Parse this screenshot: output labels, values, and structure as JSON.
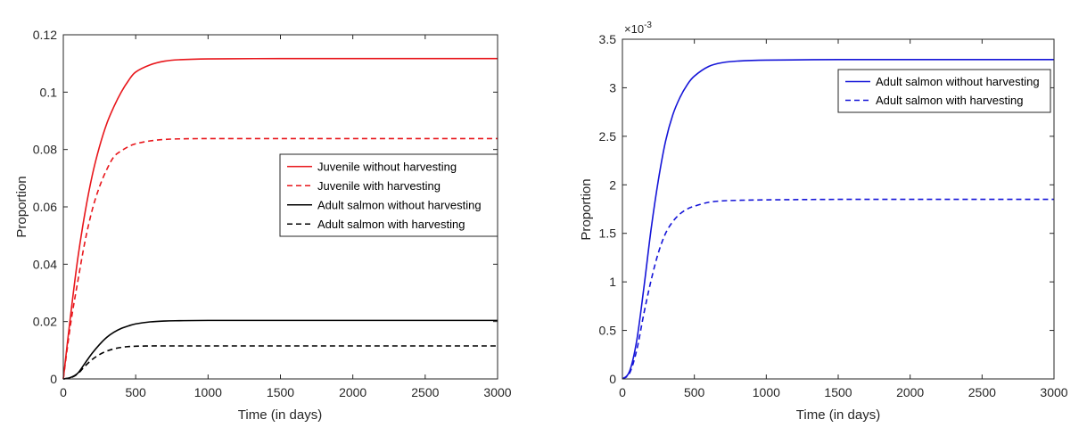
{
  "chart_data": [
    {
      "type": "line",
      "xlabel": "Time (in days)",
      "ylabel": "Proportion",
      "xlim": [
        0,
        3000
      ],
      "ylim": [
        0,
        0.12
      ],
      "xticks": [
        "0",
        "500",
        "1000",
        "1500",
        "2000",
        "2500",
        "3000"
      ],
      "yticks": [
        "0",
        "0.02",
        "0.04",
        "0.06",
        "0.08",
        "0.1",
        "0.12"
      ],
      "grid": false,
      "legend_position": "center-right",
      "series": [
        {
          "name": "Juvenile without harvesting",
          "color": "#e8161b",
          "dash": "solid",
          "x": [
            0,
            50,
            100,
            150,
            200,
            250,
            300,
            350,
            400,
            450,
            500,
            600,
            700,
            800,
            1000,
            1500,
            2000,
            2500,
            3000
          ],
          "y": [
            0,
            0.022,
            0.042,
            0.058,
            0.071,
            0.081,
            0.089,
            0.095,
            0.1,
            0.104,
            0.107,
            0.1095,
            0.1108,
            0.1113,
            0.1116,
            0.1117,
            0.1117,
            0.1117,
            0.1117
          ]
        },
        {
          "name": "Juvenile with harvesting",
          "color": "#e8161b",
          "dash": "dashed",
          "x": [
            0,
            50,
            100,
            150,
            200,
            250,
            300,
            350,
            400,
            450,
            500,
            600,
            700,
            800,
            1000,
            1500,
            2000,
            2500,
            3000
          ],
          "y": [
            0,
            0.019,
            0.034,
            0.048,
            0.059,
            0.067,
            0.073,
            0.0775,
            0.0795,
            0.081,
            0.082,
            0.083,
            0.0835,
            0.0837,
            0.0838,
            0.0838,
            0.0838,
            0.0838,
            0.0838
          ]
        },
        {
          "name": "Adult salmon without harvesting",
          "color": "#000000",
          "dash": "solid",
          "x": [
            0,
            50,
            100,
            150,
            200,
            250,
            300,
            350,
            400,
            450,
            500,
            600,
            700,
            800,
            1000,
            1500,
            2000,
            2500,
            3000
          ],
          "y": [
            0,
            0.0005,
            0.002,
            0.0055,
            0.009,
            0.012,
            0.0145,
            0.0163,
            0.0176,
            0.0185,
            0.0192,
            0.0199,
            0.0202,
            0.0203,
            0.0204,
            0.0204,
            0.0204,
            0.0204,
            0.0204
          ]
        },
        {
          "name": "Adult salmon with harvesting",
          "color": "#000000",
          "dash": "dashed",
          "x": [
            0,
            50,
            100,
            150,
            200,
            250,
            300,
            350,
            400,
            450,
            500,
            600,
            700,
            800,
            1000,
            1500,
            2000,
            2500,
            3000
          ],
          "y": [
            0,
            0.0004,
            0.0018,
            0.0045,
            0.0068,
            0.0085,
            0.0097,
            0.0105,
            0.011,
            0.0113,
            0.0114,
            0.0115,
            0.0115,
            0.0115,
            0.0115,
            0.0115,
            0.0115,
            0.0115,
            0.0115
          ]
        }
      ]
    },
    {
      "type": "line",
      "xlabel": "Time (in days)",
      "ylabel": "Proportion",
      "y_exponent_label": "×10",
      "y_exponent_power": "-3",
      "xlim": [
        0,
        3000
      ],
      "ylim": [
        0,
        3.5
      ],
      "xticks": [
        "0",
        "500",
        "1000",
        "1500",
        "2000",
        "2500",
        "3000"
      ],
      "yticks": [
        "0",
        "0.5",
        "1",
        "1.5",
        "2",
        "2.5",
        "3",
        "3.5"
      ],
      "grid": false,
      "legend_position": "top-right",
      "series": [
        {
          "name": "Adult salmon without harvesting",
          "color": "#1515d8",
          "dash": "solid",
          "x": [
            0,
            50,
            100,
            150,
            200,
            250,
            300,
            350,
            400,
            450,
            500,
            600,
            700,
            800,
            1000,
            1500,
            2000,
            2500,
            3000
          ],
          "y": [
            0,
            0.08,
            0.4,
            0.95,
            1.55,
            2.05,
            2.45,
            2.72,
            2.9,
            3.03,
            3.12,
            3.22,
            3.26,
            3.275,
            3.285,
            3.29,
            3.29,
            3.29,
            3.29
          ]
        },
        {
          "name": "Adult salmon with harvesting",
          "color": "#1515d8",
          "dash": "dashed",
          "x": [
            0,
            50,
            100,
            150,
            200,
            250,
            300,
            350,
            400,
            450,
            500,
            600,
            700,
            800,
            1000,
            1500,
            2000,
            2500,
            3000
          ],
          "y": [
            0,
            0.06,
            0.3,
            0.68,
            1.02,
            1.3,
            1.5,
            1.62,
            1.7,
            1.75,
            1.78,
            1.82,
            1.835,
            1.84,
            1.845,
            1.85,
            1.85,
            1.85,
            1.85
          ]
        }
      ]
    }
  ]
}
